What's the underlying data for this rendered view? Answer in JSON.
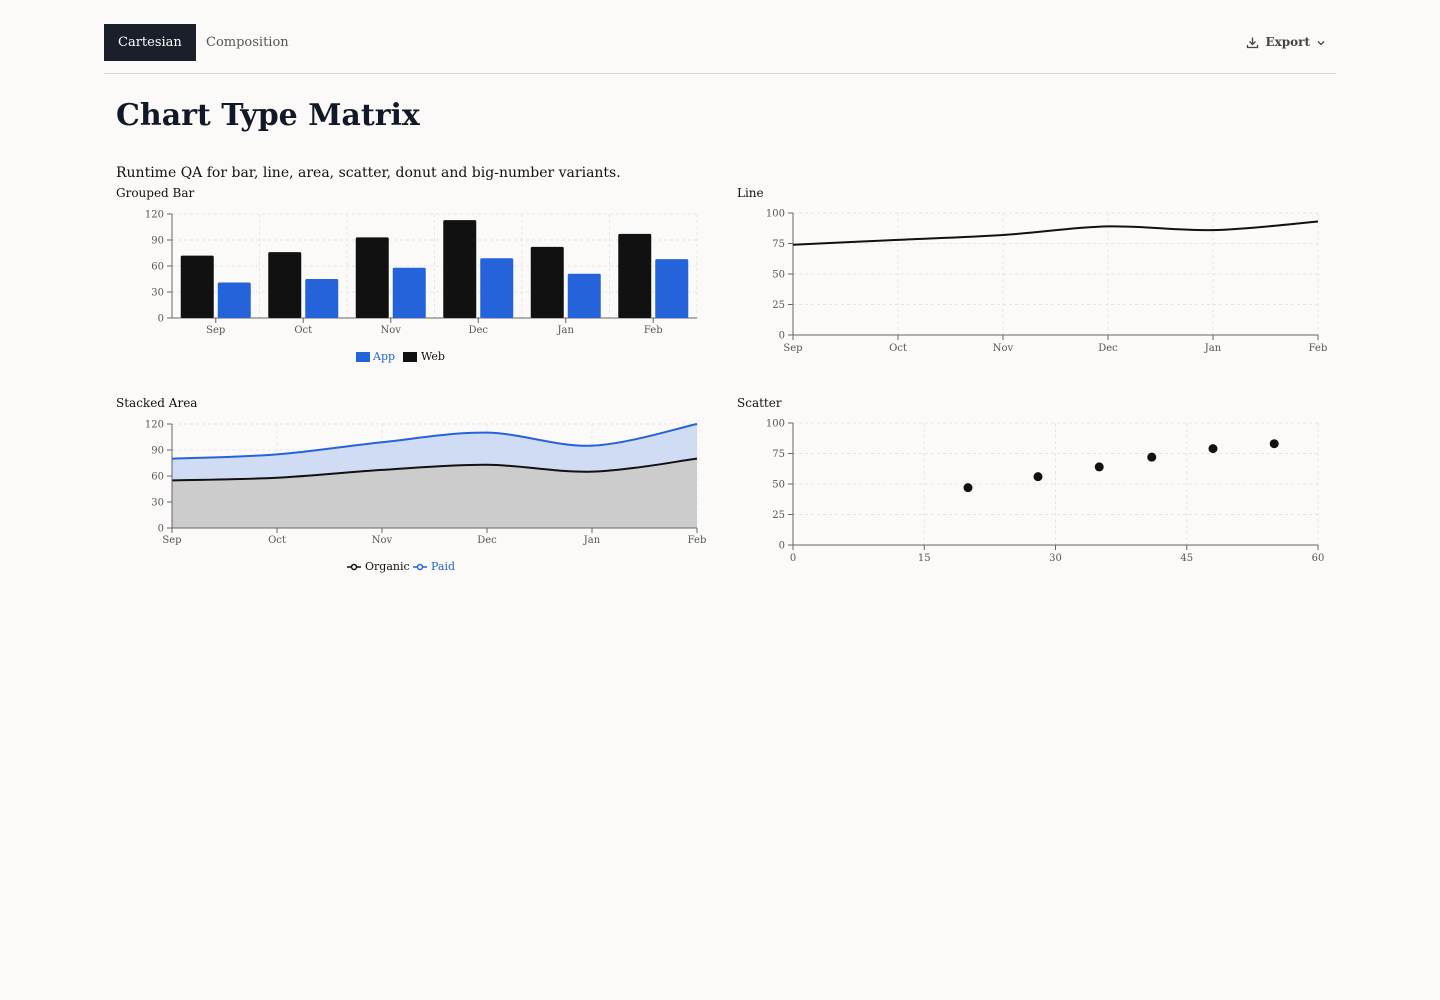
{
  "tabs": [
    {
      "label": "Cartesian",
      "active": true
    },
    {
      "label": "Composition",
      "active": false
    }
  ],
  "export": {
    "label": "Export"
  },
  "page": {
    "title": "Chart Type Matrix",
    "subtitle": "Runtime QA for bar, line, area, scatter, donut and big-number variants."
  },
  "colors": {
    "web": "#111111",
    "app": "#2563db",
    "organic_fill": "#cccccc",
    "paid_fill": "#cfdcf3",
    "grid": "#e5e5e5"
  },
  "chart_data": [
    {
      "type": "bar",
      "title": "Grouped Bar",
      "categories": [
        "Sep",
        "Oct",
        "Nov",
        "Dec",
        "Jan",
        "Feb"
      ],
      "series": [
        {
          "name": "Web",
          "values": [
            72,
            76,
            93,
            113,
            82,
            97
          ]
        },
        {
          "name": "App",
          "values": [
            41,
            45,
            58,
            69,
            51,
            68
          ]
        }
      ],
      "legend": [
        "App",
        "Web"
      ],
      "yticks": [
        0,
        30,
        60,
        90,
        120
      ],
      "ylim": [
        0,
        120
      ],
      "legend_position": "bottom"
    },
    {
      "type": "line",
      "title": "Line",
      "categories": [
        "Sep",
        "Oct",
        "Nov",
        "Dec",
        "Jan",
        "Feb"
      ],
      "values": [
        74,
        78,
        82,
        89,
        86,
        93
      ],
      "yticks": [
        0,
        25,
        50,
        75,
        100
      ],
      "ylim": [
        0,
        100
      ]
    },
    {
      "type": "area",
      "title": "Stacked Area",
      "categories": [
        "Sep",
        "Oct",
        "Nov",
        "Dec",
        "Jan",
        "Feb"
      ],
      "series": [
        {
          "name": "Organic",
          "values": [
            55,
            58,
            67,
            73,
            65,
            80
          ]
        },
        {
          "name": "Paid",
          "values": [
            25,
            27,
            32,
            37,
            30,
            40
          ]
        }
      ],
      "yticks": [
        0,
        30,
        60,
        90,
        120
      ],
      "ylim": [
        0,
        120
      ],
      "legend_position": "bottom"
    },
    {
      "type": "scatter",
      "title": "Scatter",
      "points": [
        [
          20,
          47
        ],
        [
          28,
          56
        ],
        [
          35,
          64
        ],
        [
          41,
          72
        ],
        [
          48,
          79
        ],
        [
          55,
          83
        ]
      ],
      "xticks": [
        0,
        15,
        30,
        45,
        60
      ],
      "xlim": [
        0,
        60
      ],
      "yticks": [
        0,
        25,
        50,
        75,
        100
      ],
      "ylim": [
        0,
        100
      ]
    }
  ]
}
